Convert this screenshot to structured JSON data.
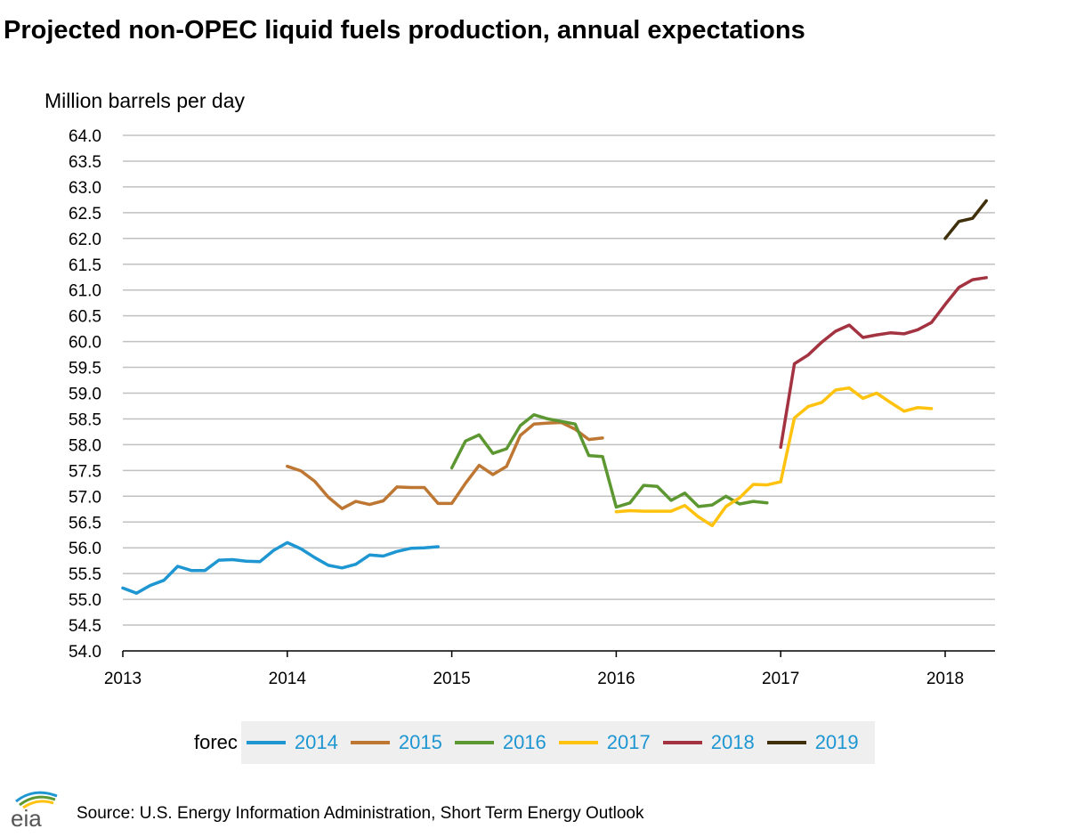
{
  "title": "Projected non-OPEC liquid fuels production, annual expectations",
  "y_unit_label": "Million barrels per day",
  "legend_label": "forec",
  "source": "Source: U.S. Energy Information Administration, Short Term Energy Outlook",
  "logo_text": "eia",
  "chart_data": {
    "type": "line",
    "title": "Projected non-OPEC liquid fuels production, annual expectations",
    "ylabel": "Million barrels per day",
    "ylim": [
      54.0,
      64.0
    ],
    "y_ticks": [
      "54.0",
      "54.5",
      "55.0",
      "55.5",
      "56.0",
      "56.5",
      "57.0",
      "57.5",
      "58.0",
      "58.5",
      "59.0",
      "59.5",
      "60.0",
      "60.5",
      "61.0",
      "61.5",
      "62.0",
      "62.5",
      "63.0",
      "63.5",
      "64.0"
    ],
    "x_ticks": [
      "2013",
      "2014",
      "2015",
      "2016",
      "2017",
      "2018"
    ],
    "x_range_months": [
      0,
      63.3
    ],
    "grid": true,
    "legend_position": "bottom",
    "series": [
      {
        "name": "2014",
        "color": "#1e96d2",
        "start_month": 0,
        "values": [
          55.22,
          55.12,
          55.27,
          55.37,
          55.64,
          55.56,
          55.56,
          55.76,
          55.77,
          55.74,
          55.73,
          55.95,
          56.1,
          55.98,
          55.81,
          55.66,
          55.61,
          55.68,
          55.86,
          55.84,
          55.93,
          55.99,
          56.0,
          56.02
        ]
      },
      {
        "name": "2015",
        "color": "#bd7733",
        "start_month": 12,
        "values": [
          57.58,
          57.49,
          57.29,
          56.98,
          56.76,
          56.9,
          56.84,
          56.91,
          57.18,
          57.17,
          57.17,
          56.86,
          56.86,
          57.25,
          57.6,
          57.42,
          57.58,
          58.18,
          58.4,
          58.42,
          58.43,
          58.3,
          58.1,
          58.13
        ]
      },
      {
        "name": "2016",
        "color": "#5d9732",
        "start_month": 24,
        "values": [
          57.55,
          58.07,
          58.19,
          57.83,
          57.92,
          58.37,
          58.58,
          58.5,
          58.45,
          58.4,
          57.79,
          57.77,
          56.79,
          56.87,
          57.21,
          57.19,
          56.92,
          57.06,
          56.8,
          56.83,
          57.0,
          56.85,
          56.9,
          56.87
        ]
      },
      {
        "name": "2017",
        "color": "#ffc20e",
        "start_month": 36,
        "values": [
          56.7,
          56.72,
          56.71,
          56.71,
          56.71,
          56.82,
          56.6,
          56.43,
          56.8,
          56.97,
          57.23,
          57.22,
          57.28,
          58.52,
          58.74,
          58.82,
          59.06,
          59.1,
          58.9,
          59.0,
          58.82,
          58.65,
          58.72,
          58.7
        ]
      },
      {
        "name": "2018",
        "color": "#a33340",
        "start_month": 48,
        "values": [
          57.95,
          59.57,
          59.74,
          59.99,
          60.2,
          60.32,
          60.08,
          60.13,
          60.17,
          60.15,
          60.23,
          60.37,
          60.72,
          61.05,
          61.2,
          61.24
        ]
      },
      {
        "name": "2019",
        "color": "#3f300b",
        "start_month": 60,
        "values": [
          62.0,
          62.33,
          62.39,
          62.73
        ]
      }
    ]
  }
}
